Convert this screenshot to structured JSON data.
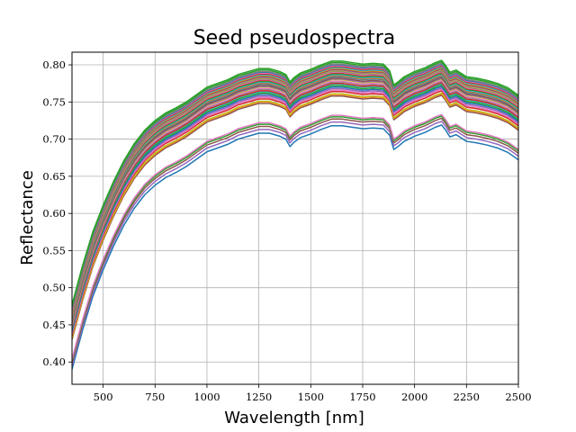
{
  "chart_data": {
    "type": "line",
    "title": "Seed pseudospectra",
    "xlabel": "Wavelength [nm]",
    "ylabel": "Reflectance",
    "xlim": [
      350,
      2500
    ],
    "ylim": [
      0.37,
      0.817
    ],
    "grid": true,
    "xticks": [
      500,
      750,
      1000,
      1250,
      1500,
      1750,
      2000,
      2250,
      2500
    ],
    "xtick_labels": [
      "500",
      "750",
      "1000",
      "1250",
      "1500",
      "1750",
      "2000",
      "2250",
      "2500"
    ],
    "yticks": [
      0.4,
      0.45,
      0.5,
      0.55,
      0.6,
      0.65,
      0.7,
      0.75,
      0.8
    ],
    "ytick_labels": [
      "0.40",
      "0.45",
      "0.50",
      "0.55",
      "0.60",
      "0.65",
      "0.70",
      "0.75",
      "0.80"
    ],
    "palette": [
      "#1f77b4",
      "#ff7f0e",
      "#2ca02c",
      "#d62728",
      "#9467bd",
      "#8c564b",
      "#e377c2",
      "#7f7f7f",
      "#bcbd22",
      "#17becf"
    ],
    "x": [
      350,
      400,
      450,
      500,
      550,
      600,
      650,
      700,
      750,
      800,
      850,
      900,
      950,
      1000,
      1050,
      1100,
      1150,
      1200,
      1250,
      1300,
      1350,
      1380,
      1400,
      1420,
      1450,
      1500,
      1550,
      1600,
      1650,
      1700,
      1750,
      1800,
      1850,
      1880,
      1900,
      1920,
      1950,
      2000,
      2050,
      2100,
      2130,
      2150,
      2170,
      2200,
      2250,
      2300,
      2350,
      2400,
      2450,
      2500
    ],
    "base_shape": [
      0.39,
      0.442,
      0.488,
      0.524,
      0.556,
      0.584,
      0.607,
      0.625,
      0.638,
      0.648,
      0.655,
      0.663,
      0.673,
      0.683,
      0.688,
      0.693,
      0.7,
      0.704,
      0.708,
      0.708,
      0.704,
      0.7,
      0.69,
      0.696,
      0.702,
      0.707,
      0.713,
      0.718,
      0.718,
      0.716,
      0.714,
      0.715,
      0.714,
      0.705,
      0.686,
      0.69,
      0.697,
      0.704,
      0.709,
      0.716,
      0.719,
      0.712,
      0.703,
      0.706,
      0.697,
      0.695,
      0.692,
      0.688,
      0.682,
      0.672
    ],
    "series": [
      {
        "offset": 0.0,
        "color": "#1f77b4"
      },
      {
        "offset": 0.005,
        "color": "#9467bd"
      },
      {
        "offset": 0.009,
        "color": "#8c564b"
      },
      {
        "offset": 0.012,
        "color": "#2ca02c"
      },
      {
        "offset": 0.014,
        "color": "#e377c2"
      },
      {
        "offset": 0.04,
        "color": "#8c564b"
      },
      {
        "offset": 0.042,
        "color": "#ff7f0e"
      },
      {
        "offset": 0.043,
        "color": "#bcbd22"
      },
      {
        "offset": 0.046,
        "color": "#d62728"
      },
      {
        "offset": 0.048,
        "color": "#e377c2"
      },
      {
        "offset": 0.05,
        "color": "#9467bd"
      },
      {
        "offset": 0.052,
        "color": "#1f77b4"
      },
      {
        "offset": 0.054,
        "color": "#2ca02c"
      },
      {
        "offset": 0.056,
        "color": "#17becf"
      },
      {
        "offset": 0.057,
        "color": "#d62728"
      },
      {
        "offset": 0.059,
        "color": "#7f7f7f"
      },
      {
        "offset": 0.06,
        "color": "#e377c2"
      },
      {
        "offset": 0.062,
        "color": "#bcbd22"
      },
      {
        "offset": 0.063,
        "color": "#9467bd"
      },
      {
        "offset": 0.064,
        "color": "#8c564b"
      },
      {
        "offset": 0.066,
        "color": "#1f77b4"
      },
      {
        "offset": 0.067,
        "color": "#ff7f0e"
      },
      {
        "offset": 0.068,
        "color": "#7f7f7f"
      },
      {
        "offset": 0.069,
        "color": "#17becf"
      },
      {
        "offset": 0.07,
        "color": "#2ca02c"
      },
      {
        "offset": 0.071,
        "color": "#d62728"
      },
      {
        "offset": 0.072,
        "color": "#e377c2"
      },
      {
        "offset": 0.073,
        "color": "#7f7f7f"
      },
      {
        "offset": 0.074,
        "color": "#bcbd22"
      },
      {
        "offset": 0.075,
        "color": "#9467bd"
      },
      {
        "offset": 0.076,
        "color": "#8c564b"
      },
      {
        "offset": 0.077,
        "color": "#ff7f0e"
      },
      {
        "offset": 0.078,
        "color": "#17becf"
      },
      {
        "offset": 0.079,
        "color": "#7f7f7f"
      },
      {
        "offset": 0.08,
        "color": "#d62728"
      },
      {
        "offset": 0.081,
        "color": "#e377c2"
      },
      {
        "offset": 0.082,
        "color": "#1f77b4"
      },
      {
        "offset": 0.083,
        "color": "#7f7f7f"
      },
      {
        "offset": 0.085,
        "color": "#2ca02c"
      },
      {
        "offset": 0.087,
        "color": "#2ca02c"
      }
    ]
  }
}
